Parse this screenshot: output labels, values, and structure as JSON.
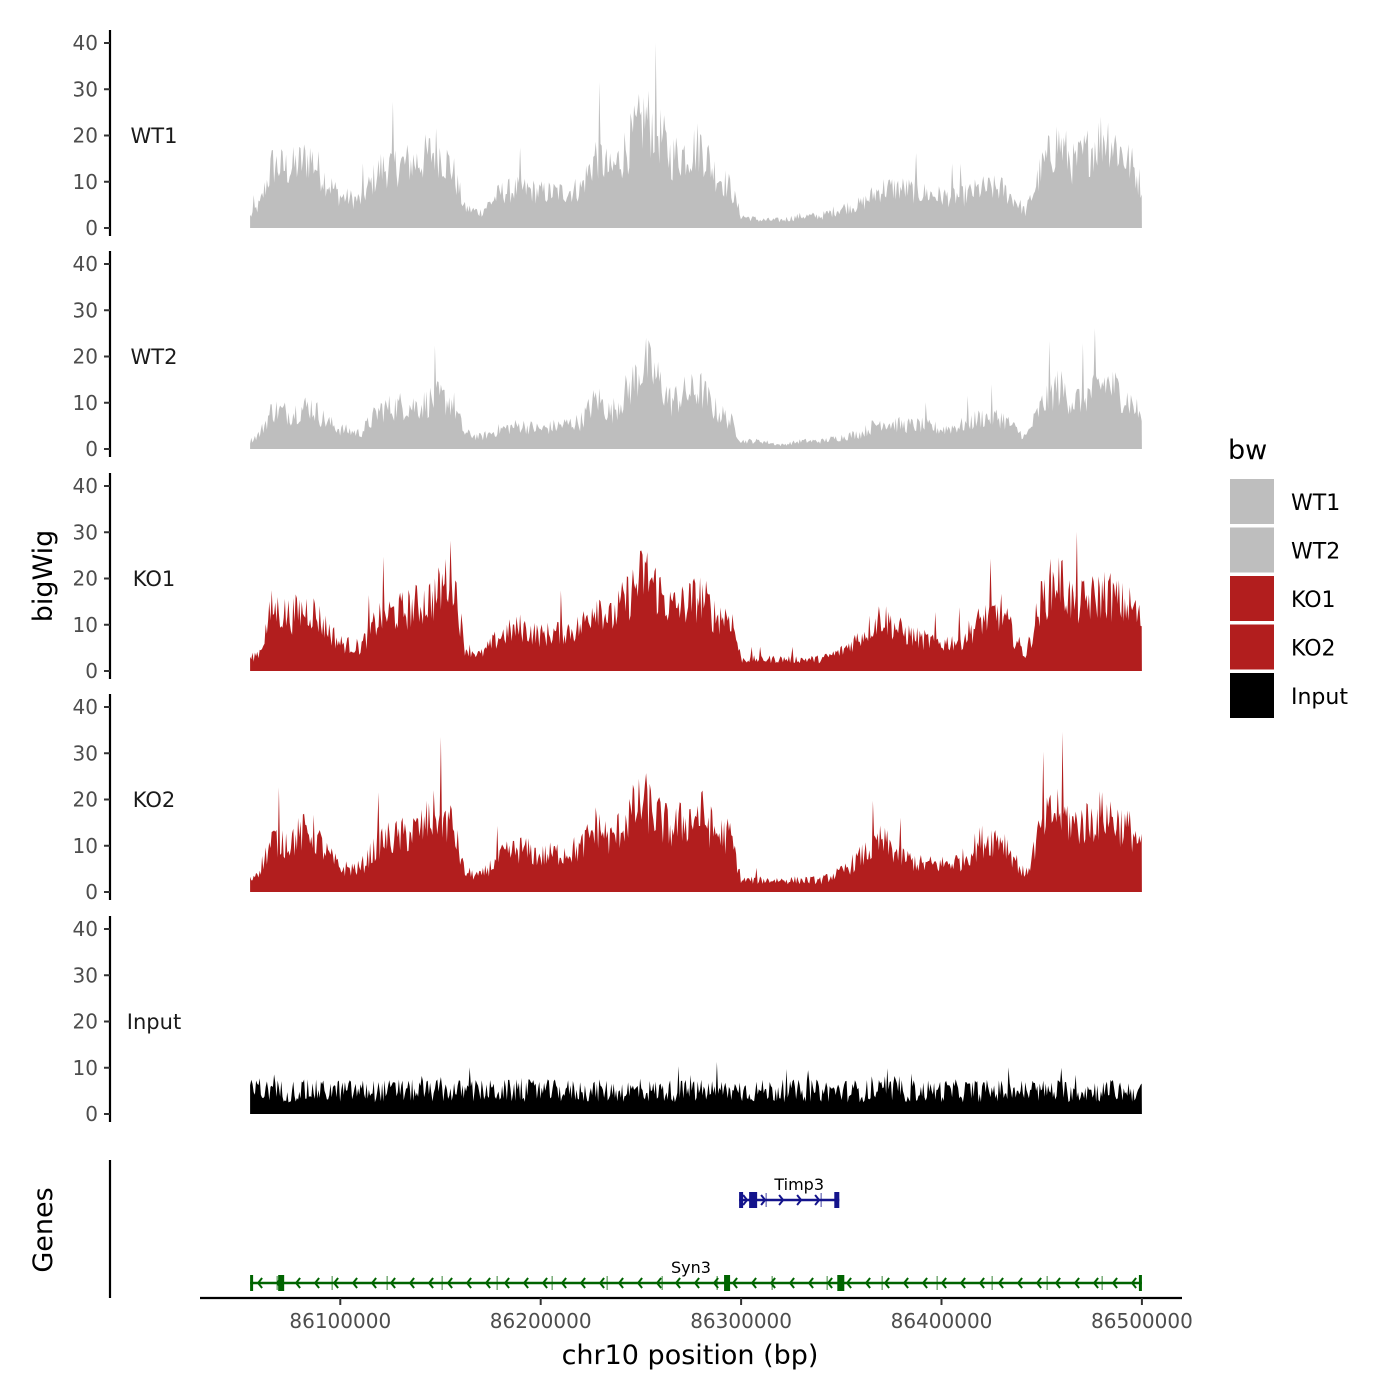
{
  "chart_data": {
    "type": "area",
    "title": "",
    "xlabel": "chr10 position (bp)",
    "ylabel": "bigWig",
    "genes_label": "Genes",
    "xlim": [
      86030000,
      86520000
    ],
    "data_range": [
      86055000,
      86500000
    ],
    "ylim": [
      0,
      42
    ],
    "y_ticks": [
      "0",
      "10",
      "20",
      "30",
      "40"
    ],
    "x_ticks": [
      {
        "value": 86100000,
        "label": "86100000"
      },
      {
        "value": 86200000,
        "label": "86200000"
      },
      {
        "value": 86300000,
        "label": "86300000"
      },
      {
        "value": 86400000,
        "label": "86400000"
      },
      {
        "value": 86500000,
        "label": "86500000"
      }
    ],
    "legend": {
      "title": "bw",
      "position": "right",
      "entries": [
        {
          "label": "WT1",
          "color": "#bebebe"
        },
        {
          "label": "WT2",
          "color": "#bebebe"
        },
        {
          "label": "KO1",
          "color": "#b21e1e"
        },
        {
          "label": "KO2",
          "color": "#b21e1e"
        },
        {
          "label": "Input",
          "color": "#000000"
        }
      ]
    },
    "series": [
      {
        "name": "WT1",
        "color": "#bebebe",
        "profile": [
          {
            "x": 86055000,
            "y": 3
          },
          {
            "x": 86060000,
            "y": 6
          },
          {
            "x": 86066000,
            "y": 16
          },
          {
            "x": 86075000,
            "y": 15
          },
          {
            "x": 86085000,
            "y": 18
          },
          {
            "x": 86093000,
            "y": 12
          },
          {
            "x": 86100000,
            "y": 8
          },
          {
            "x": 86110000,
            "y": 7
          },
          {
            "x": 86120000,
            "y": 15
          },
          {
            "x": 86130000,
            "y": 16
          },
          {
            "x": 86140000,
            "y": 17
          },
          {
            "x": 86148000,
            "y": 20
          },
          {
            "x": 86156000,
            "y": 15
          },
          {
            "x": 86162000,
            "y": 5
          },
          {
            "x": 86170000,
            "y": 4
          },
          {
            "x": 86180000,
            "y": 9
          },
          {
            "x": 86190000,
            "y": 10
          },
          {
            "x": 86200000,
            "y": 9
          },
          {
            "x": 86210000,
            "y": 9
          },
          {
            "x": 86220000,
            "y": 10
          },
          {
            "x": 86228000,
            "y": 19
          },
          {
            "x": 86235000,
            "y": 14
          },
          {
            "x": 86245000,
            "y": 22
          },
          {
            "x": 86252000,
            "y": 28
          },
          {
            "x": 86258000,
            "y": 25
          },
          {
            "x": 86265000,
            "y": 18
          },
          {
            "x": 86272000,
            "y": 19
          },
          {
            "x": 86280000,
            "y": 21
          },
          {
            "x": 86287000,
            "y": 14
          },
          {
            "x": 86295000,
            "y": 10
          },
          {
            "x": 86300000,
            "y": 3
          },
          {
            "x": 86310000,
            "y": 2
          },
          {
            "x": 86320000,
            "y": 2
          },
          {
            "x": 86330000,
            "y": 3
          },
          {
            "x": 86340000,
            "y": 3
          },
          {
            "x": 86350000,
            "y": 5
          },
          {
            "x": 86360000,
            "y": 6
          },
          {
            "x": 86370000,
            "y": 10
          },
          {
            "x": 86380000,
            "y": 10
          },
          {
            "x": 86390000,
            "y": 9
          },
          {
            "x": 86400000,
            "y": 8
          },
          {
            "x": 86410000,
            "y": 8
          },
          {
            "x": 86420000,
            "y": 10
          },
          {
            "x": 86430000,
            "y": 10
          },
          {
            "x": 86437000,
            "y": 7
          },
          {
            "x": 86442000,
            "y": 4
          },
          {
            "x": 86450000,
            "y": 15
          },
          {
            "x": 86458000,
            "y": 22
          },
          {
            "x": 86466000,
            "y": 16
          },
          {
            "x": 86474000,
            "y": 20
          },
          {
            "x": 86482000,
            "y": 24
          },
          {
            "x": 86490000,
            "y": 19
          },
          {
            "x": 86496000,
            "y": 15
          },
          {
            "x": 86500000,
            "y": 10
          }
        ]
      },
      {
        "name": "WT2",
        "color": "#bebebe",
        "profile": [
          {
            "x": 86055000,
            "y": 2
          },
          {
            "x": 86060000,
            "y": 4
          },
          {
            "x": 86066000,
            "y": 10
          },
          {
            "x": 86075000,
            "y": 9
          },
          {
            "x": 86085000,
            "y": 11
          },
          {
            "x": 86093000,
            "y": 7
          },
          {
            "x": 86100000,
            "y": 5
          },
          {
            "x": 86110000,
            "y": 4
          },
          {
            "x": 86120000,
            "y": 10
          },
          {
            "x": 86130000,
            "y": 11
          },
          {
            "x": 86140000,
            "y": 11
          },
          {
            "x": 86148000,
            "y": 13
          },
          {
            "x": 86156000,
            "y": 12
          },
          {
            "x": 86162000,
            "y": 4
          },
          {
            "x": 86170000,
            "y": 3
          },
          {
            "x": 86180000,
            "y": 5
          },
          {
            "x": 86190000,
            "y": 6
          },
          {
            "x": 86200000,
            "y": 5
          },
          {
            "x": 86210000,
            "y": 6
          },
          {
            "x": 86220000,
            "y": 7
          },
          {
            "x": 86228000,
            "y": 13
          },
          {
            "x": 86235000,
            "y": 9
          },
          {
            "x": 86245000,
            "y": 16
          },
          {
            "x": 86252000,
            "y": 22
          },
          {
            "x": 86258000,
            "y": 18
          },
          {
            "x": 86265000,
            "y": 12
          },
          {
            "x": 86272000,
            "y": 14
          },
          {
            "x": 86280000,
            "y": 15
          },
          {
            "x": 86287000,
            "y": 10
          },
          {
            "x": 86295000,
            "y": 7
          },
          {
            "x": 86300000,
            "y": 2
          },
          {
            "x": 86310000,
            "y": 2
          },
          {
            "x": 86320000,
            "y": 1
          },
          {
            "x": 86330000,
            "y": 2
          },
          {
            "x": 86340000,
            "y": 2
          },
          {
            "x": 86350000,
            "y": 3
          },
          {
            "x": 86360000,
            "y": 4
          },
          {
            "x": 86370000,
            "y": 7
          },
          {
            "x": 86380000,
            "y": 6
          },
          {
            "x": 86390000,
            "y": 6
          },
          {
            "x": 86400000,
            "y": 5
          },
          {
            "x": 86410000,
            "y": 6
          },
          {
            "x": 86420000,
            "y": 8
          },
          {
            "x": 86430000,
            "y": 8
          },
          {
            "x": 86437000,
            "y": 5
          },
          {
            "x": 86442000,
            "y": 3
          },
          {
            "x": 86450000,
            "y": 11
          },
          {
            "x": 86458000,
            "y": 16
          },
          {
            "x": 86466000,
            "y": 12
          },
          {
            "x": 86474000,
            "y": 14
          },
          {
            "x": 86482000,
            "y": 17
          },
          {
            "x": 86490000,
            "y": 14
          },
          {
            "x": 86496000,
            "y": 11
          },
          {
            "x": 86500000,
            "y": 8
          }
        ]
      },
      {
        "name": "KO1",
        "color": "#b21e1e",
        "profile": [
          {
            "x": 86055000,
            "y": 3
          },
          {
            "x": 86060000,
            "y": 5
          },
          {
            "x": 86066000,
            "y": 16
          },
          {
            "x": 86075000,
            "y": 14
          },
          {
            "x": 86085000,
            "y": 16
          },
          {
            "x": 86093000,
            "y": 11
          },
          {
            "x": 86100000,
            "y": 7
          },
          {
            "x": 86110000,
            "y": 6
          },
          {
            "x": 86120000,
            "y": 14
          },
          {
            "x": 86130000,
            "y": 15
          },
          {
            "x": 86140000,
            "y": 17
          },
          {
            "x": 86148000,
            "y": 19
          },
          {
            "x": 86156000,
            "y": 26
          },
          {
            "x": 86162000,
            "y": 6
          },
          {
            "x": 86170000,
            "y": 4
          },
          {
            "x": 86180000,
            "y": 9
          },
          {
            "x": 86190000,
            "y": 11
          },
          {
            "x": 86200000,
            "y": 9
          },
          {
            "x": 86210000,
            "y": 10
          },
          {
            "x": 86220000,
            "y": 11
          },
          {
            "x": 86228000,
            "y": 18
          },
          {
            "x": 86235000,
            "y": 13
          },
          {
            "x": 86245000,
            "y": 20
          },
          {
            "x": 86252000,
            "y": 25
          },
          {
            "x": 86258000,
            "y": 21
          },
          {
            "x": 86265000,
            "y": 16
          },
          {
            "x": 86272000,
            "y": 17
          },
          {
            "x": 86280000,
            "y": 19
          },
          {
            "x": 86287000,
            "y": 14
          },
          {
            "x": 86295000,
            "y": 14
          },
          {
            "x": 86300000,
            "y": 3
          },
          {
            "x": 86310000,
            "y": 3
          },
          {
            "x": 86320000,
            "y": 3
          },
          {
            "x": 86330000,
            "y": 3
          },
          {
            "x": 86340000,
            "y": 3
          },
          {
            "x": 86350000,
            "y": 5
          },
          {
            "x": 86360000,
            "y": 9
          },
          {
            "x": 86370000,
            "y": 14
          },
          {
            "x": 86380000,
            "y": 10
          },
          {
            "x": 86390000,
            "y": 8
          },
          {
            "x": 86400000,
            "y": 7
          },
          {
            "x": 86410000,
            "y": 8
          },
          {
            "x": 86420000,
            "y": 13
          },
          {
            "x": 86430000,
            "y": 15
          },
          {
            "x": 86437000,
            "y": 8
          },
          {
            "x": 86442000,
            "y": 4
          },
          {
            "x": 86450000,
            "y": 18
          },
          {
            "x": 86458000,
            "y": 24
          },
          {
            "x": 86466000,
            "y": 17
          },
          {
            "x": 86474000,
            "y": 18
          },
          {
            "x": 86482000,
            "y": 20
          },
          {
            "x": 86490000,
            "y": 17
          },
          {
            "x": 86496000,
            "y": 16
          },
          {
            "x": 86500000,
            "y": 12
          }
        ]
      },
      {
        "name": "KO2",
        "color": "#b21e1e",
        "profile": [
          {
            "x": 86055000,
            "y": 3
          },
          {
            "x": 86060000,
            "y": 6
          },
          {
            "x": 86066000,
            "y": 13
          },
          {
            "x": 86075000,
            "y": 13
          },
          {
            "x": 86085000,
            "y": 16
          },
          {
            "x": 86093000,
            "y": 10
          },
          {
            "x": 86100000,
            "y": 6
          },
          {
            "x": 86110000,
            "y": 6
          },
          {
            "x": 86120000,
            "y": 13
          },
          {
            "x": 86130000,
            "y": 14
          },
          {
            "x": 86140000,
            "y": 16
          },
          {
            "x": 86148000,
            "y": 20
          },
          {
            "x": 86156000,
            "y": 17
          },
          {
            "x": 86162000,
            "y": 5
          },
          {
            "x": 86170000,
            "y": 4
          },
          {
            "x": 86180000,
            "y": 9
          },
          {
            "x": 86190000,
            "y": 11
          },
          {
            "x": 86200000,
            "y": 9
          },
          {
            "x": 86210000,
            "y": 10
          },
          {
            "x": 86220000,
            "y": 11
          },
          {
            "x": 86228000,
            "y": 17
          },
          {
            "x": 86235000,
            "y": 13
          },
          {
            "x": 86245000,
            "y": 20
          },
          {
            "x": 86252000,
            "y": 23
          },
          {
            "x": 86258000,
            "y": 19
          },
          {
            "x": 86265000,
            "y": 16
          },
          {
            "x": 86272000,
            "y": 18
          },
          {
            "x": 86280000,
            "y": 20
          },
          {
            "x": 86287000,
            "y": 15
          },
          {
            "x": 86295000,
            "y": 14
          },
          {
            "x": 86300000,
            "y": 3
          },
          {
            "x": 86310000,
            "y": 3
          },
          {
            "x": 86320000,
            "y": 3
          },
          {
            "x": 86330000,
            "y": 3
          },
          {
            "x": 86340000,
            "y": 3
          },
          {
            "x": 86350000,
            "y": 5
          },
          {
            "x": 86360000,
            "y": 9
          },
          {
            "x": 86370000,
            "y": 13
          },
          {
            "x": 86380000,
            "y": 9
          },
          {
            "x": 86390000,
            "y": 7
          },
          {
            "x": 86400000,
            "y": 7
          },
          {
            "x": 86410000,
            "y": 8
          },
          {
            "x": 86420000,
            "y": 13
          },
          {
            "x": 86430000,
            "y": 14
          },
          {
            "x": 86437000,
            "y": 8
          },
          {
            "x": 86442000,
            "y": 4
          },
          {
            "x": 86450000,
            "y": 17
          },
          {
            "x": 86458000,
            "y": 21
          },
          {
            "x": 86466000,
            "y": 17
          },
          {
            "x": 86474000,
            "y": 18
          },
          {
            "x": 86482000,
            "y": 20
          },
          {
            "x": 86490000,
            "y": 17
          },
          {
            "x": 86496000,
            "y": 15
          },
          {
            "x": 86500000,
            "y": 11
          }
        ]
      },
      {
        "name": "Input",
        "color": "#000000",
        "profile": [
          {
            "x": 86055000,
            "y": 5
          },
          {
            "x": 86150000,
            "y": 5
          },
          {
            "x": 86250000,
            "y": 5
          },
          {
            "x": 86350000,
            "y": 5
          },
          {
            "x": 86450000,
            "y": 5
          },
          {
            "x": 86500000,
            "y": 5
          }
        ]
      }
    ],
    "genes": [
      {
        "name": "Timp3",
        "color": "#14148c",
        "strand": "+",
        "start": 86299000,
        "end": 86349000,
        "exons": [
          [
            86299000,
            86301000
          ],
          [
            86304000,
            86308000
          ],
          [
            86346500,
            86349000
          ]
        ]
      },
      {
        "name": "Syn3",
        "color": "#006400",
        "strand": "-",
        "start": 86055000,
        "end": 86500000,
        "exons": [
          [
            86055000,
            86056500
          ],
          [
            86069000,
            86072000
          ],
          [
            86291500,
            86294500
          ],
          [
            86348000,
            86351500
          ],
          [
            86498500,
            86500000
          ]
        ]
      }
    ]
  }
}
